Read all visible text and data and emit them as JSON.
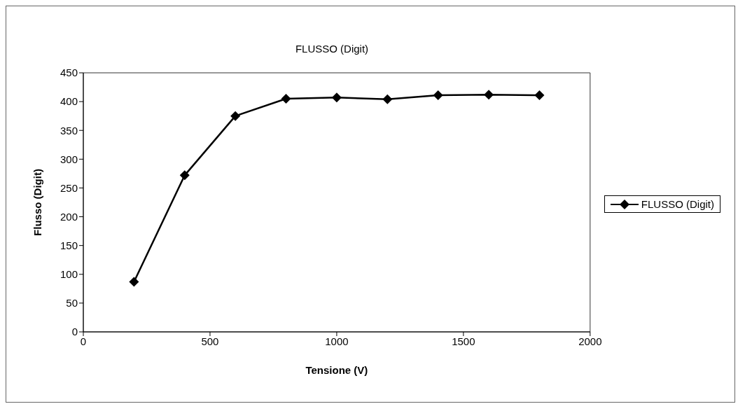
{
  "chart_data": {
    "type": "line",
    "title": "FLUSSO (Digit)",
    "xlabel": "Tensione (V)",
    "ylabel": "Flusso (Digit)",
    "x": [
      200,
      400,
      600,
      800,
      1000,
      1200,
      1400,
      1600,
      1800
    ],
    "series": [
      {
        "name": "FLUSSO (Digit)",
        "color": "#000000",
        "values": [
          87,
          272,
          375,
          405,
          407,
          404,
          411,
          412,
          411
        ]
      }
    ],
    "xlim": [
      0,
      2000
    ],
    "xticks": [
      0,
      500,
      1000,
      1500,
      2000
    ],
    "ylim": [
      0,
      450
    ],
    "yticks": [
      0,
      50,
      100,
      150,
      200,
      250,
      300,
      350,
      400,
      450
    ],
    "grid": false,
    "legend": "right",
    "marker": "diamond",
    "line_style": "solid"
  }
}
